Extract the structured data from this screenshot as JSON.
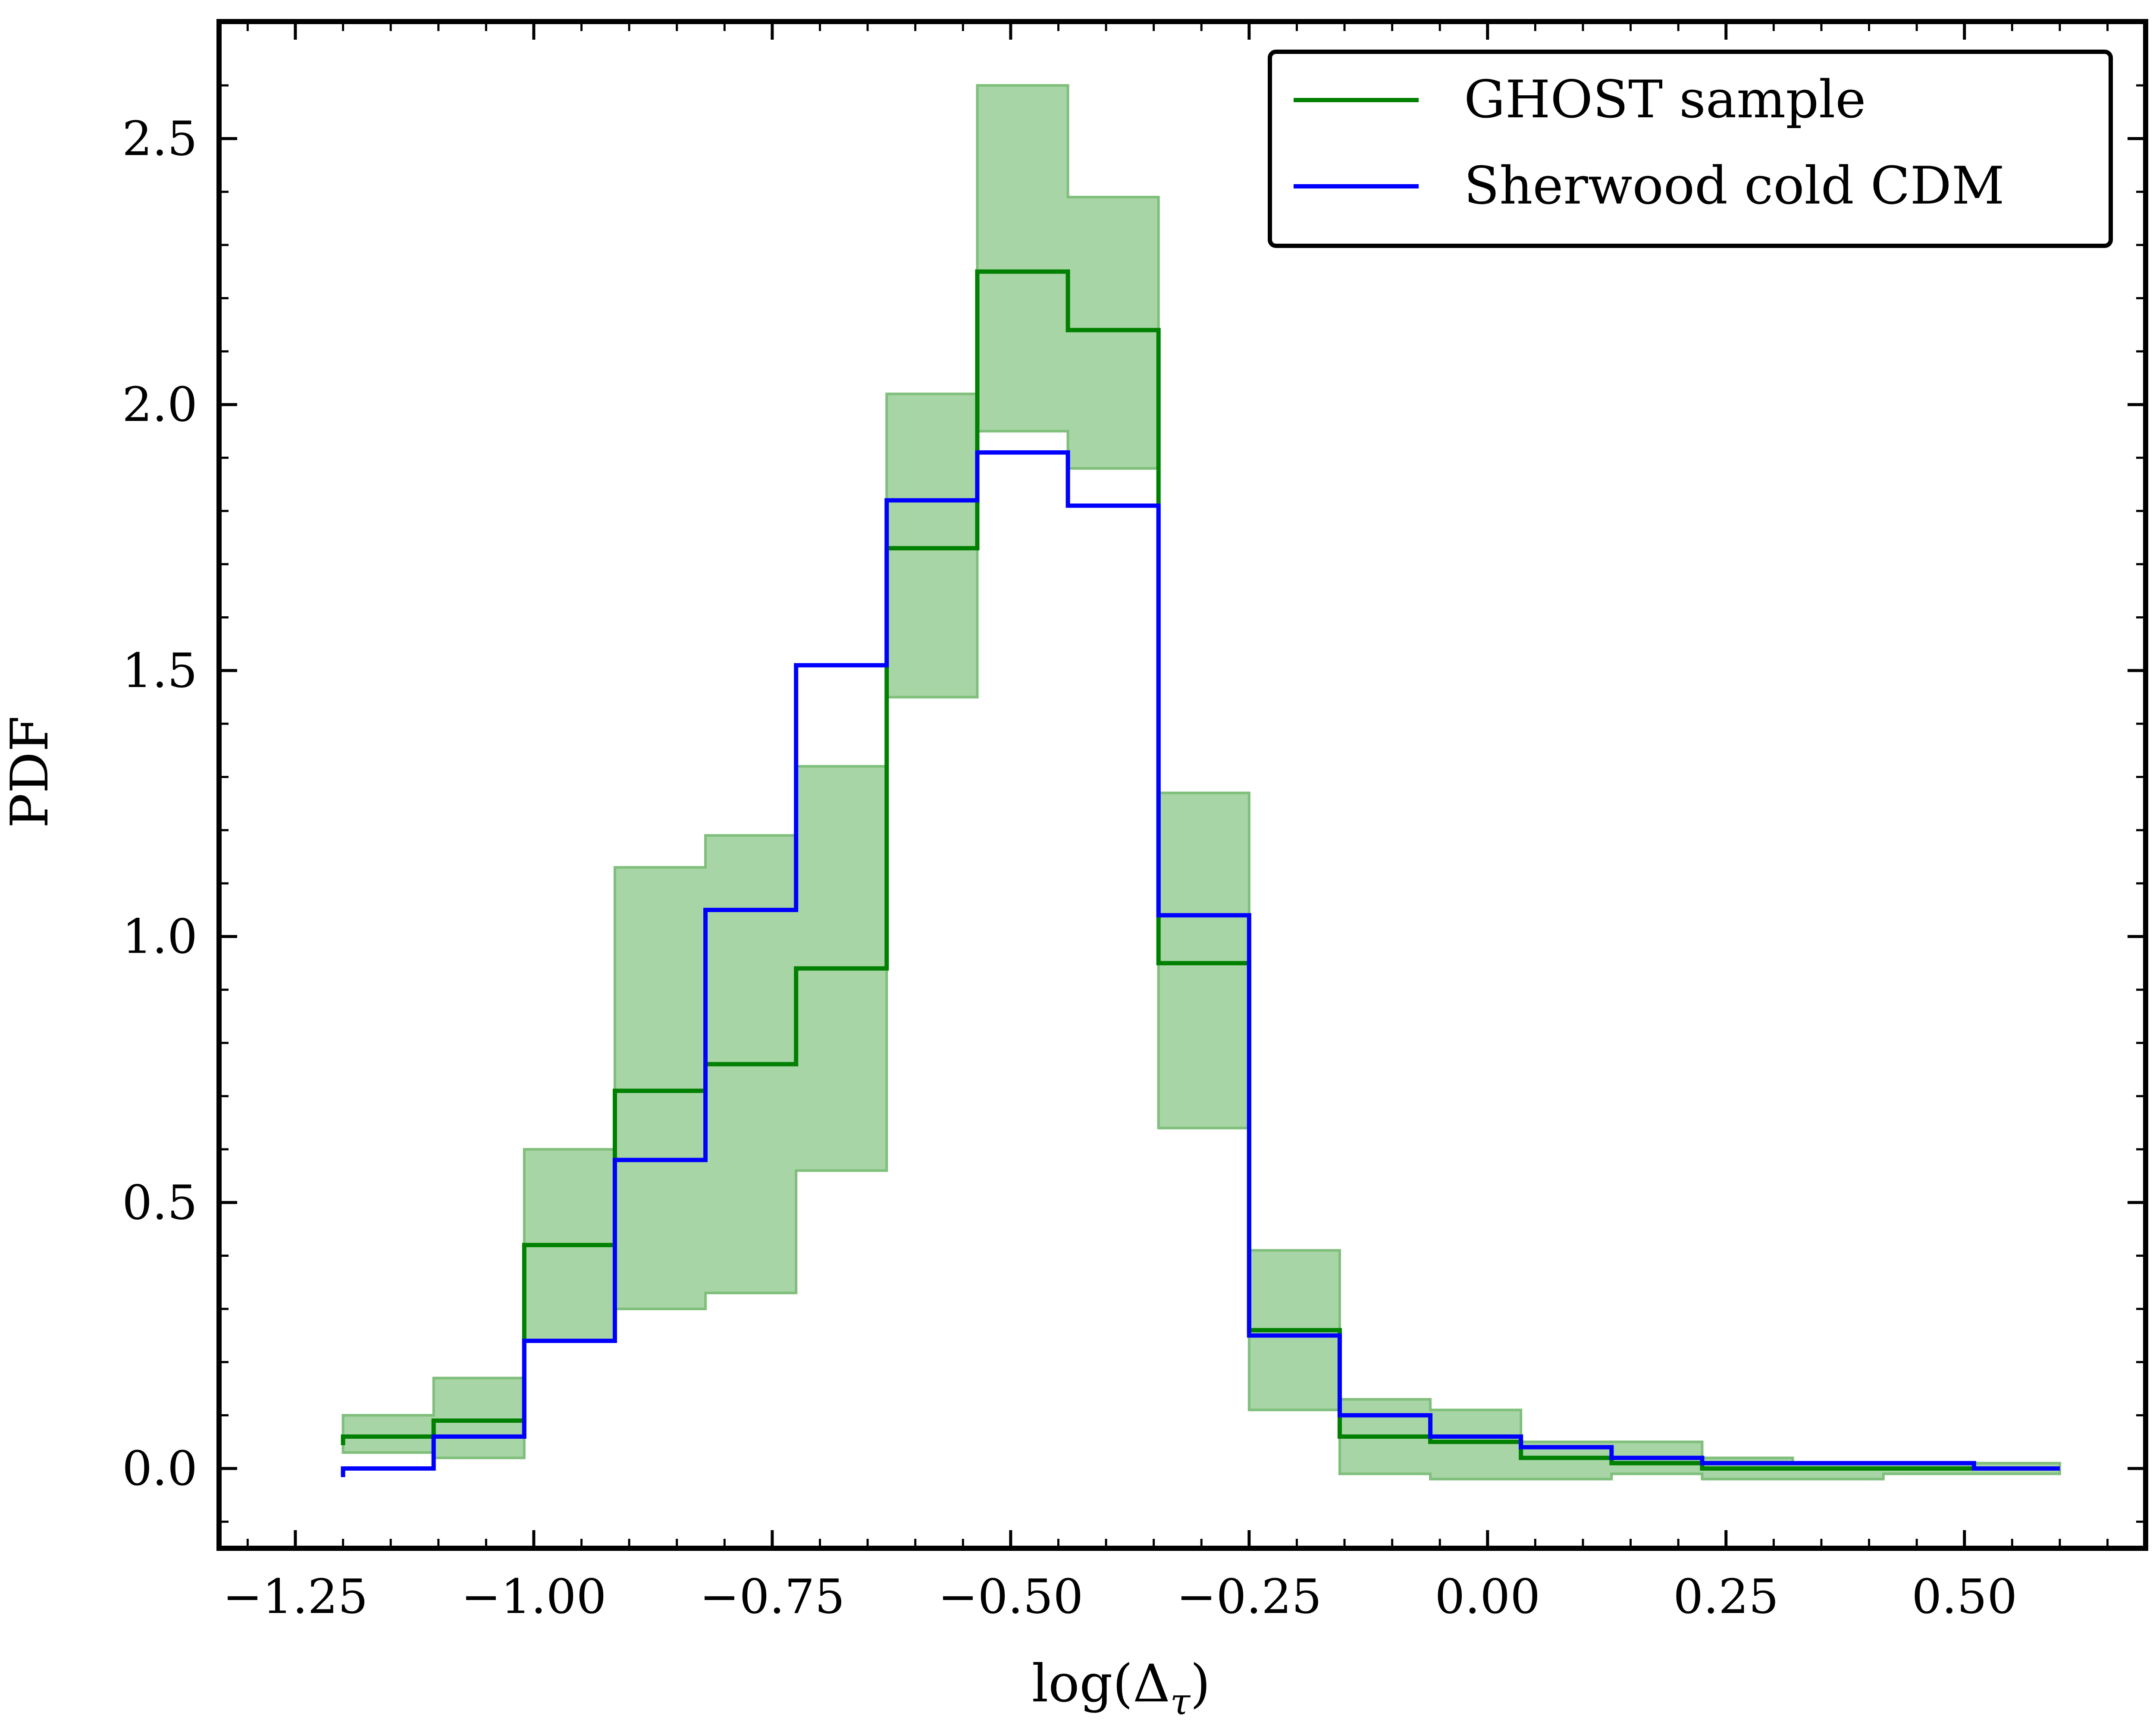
{
  "chart_data": {
    "type": "line",
    "xlabel": "log(Δτ)",
    "ylabel": "PDF",
    "xlim": [
      -1.33,
      0.69
    ],
    "ylim": [
      -0.15,
      2.72
    ],
    "x_ticks": [
      -1.25,
      -1.0,
      -0.75,
      -0.5,
      -0.25,
      0.0,
      0.25,
      0.5
    ],
    "x_tick_labels": [
      "−1.25",
      "−1.00",
      "−0.75",
      "−0.50",
      "−0.25",
      "0.00",
      "0.25",
      "0.50"
    ],
    "y_ticks": [
      0.0,
      0.5,
      1.0,
      1.5,
      2.0,
      2.5
    ],
    "y_tick_labels": [
      "0.0",
      "0.5",
      "1.0",
      "1.5",
      "2.0",
      "2.5"
    ],
    "bin_edges": [
      -1.2,
      -1.105,
      -1.01,
      -0.915,
      -0.82,
      -0.725,
      -0.63,
      -0.535,
      -0.44,
      -0.345,
      -0.25,
      -0.155,
      -0.06,
      0.035,
      0.13,
      0.225,
      0.32,
      0.415,
      0.51,
      0.6
    ],
    "series": [
      {
        "name": "GHOST sample",
        "color": "#008000",
        "values": [
          0.06,
          0.09,
          0.42,
          0.71,
          0.76,
          0.94,
          1.73,
          2.25,
          2.14,
          0.95,
          0.26,
          0.06,
          0.05,
          0.02,
          0.01,
          0.0,
          0.0,
          0.0,
          0.0
        ],
        "band_lower": [
          0.03,
          0.02,
          0.24,
          0.3,
          0.33,
          0.56,
          1.45,
          1.95,
          1.88,
          0.64,
          0.11,
          -0.01,
          -0.02,
          -0.02,
          -0.01,
          -0.02,
          -0.02,
          -0.01,
          -0.01
        ],
        "band_upper": [
          0.1,
          0.17,
          0.6,
          1.13,
          1.19,
          1.32,
          2.02,
          2.6,
          2.39,
          1.27,
          0.41,
          0.13,
          0.11,
          0.05,
          0.05,
          0.02,
          0.01,
          0.01,
          0.01
        ]
      },
      {
        "name": "Sherwood cold CDM",
        "color": "#0000ff",
        "values": [
          0.0,
          0.06,
          0.24,
          0.58,
          1.05,
          1.51,
          1.82,
          1.91,
          1.81,
          1.04,
          0.25,
          0.1,
          0.06,
          0.04,
          0.02,
          0.01,
          0.01,
          0.01,
          0.0
        ]
      }
    ],
    "band_color": "#a8d5a5",
    "band_edge_color": "#7fbf7b",
    "legend_position": "top-right",
    "grid": false
  }
}
